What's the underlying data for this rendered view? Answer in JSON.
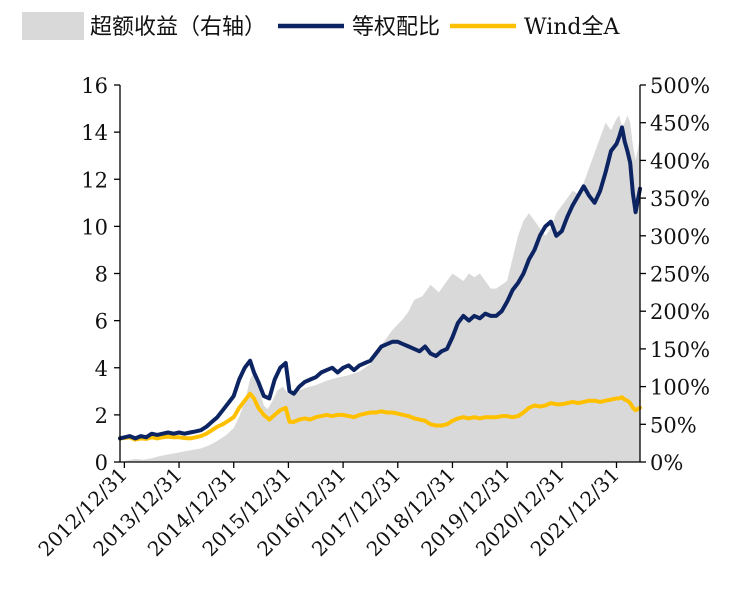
{
  "chart_data": {
    "type": "line",
    "legend": {
      "position": "top",
      "entries": [
        {
          "key": "excess",
          "label": "超额收益（右轴）",
          "style": "area",
          "color": "#d9d9d9"
        },
        {
          "key": "equal",
          "label": "等权配比",
          "style": "line",
          "color": "#0d2463"
        },
        {
          "key": "wind",
          "label": "Wind全A",
          "style": "line",
          "color": "#ffc000"
        }
      ]
    },
    "y_left": {
      "min": 0,
      "max": 16,
      "ticks": [
        "0",
        "2",
        "4",
        "6",
        "8",
        "10",
        "12",
        "14",
        "16"
      ]
    },
    "y_right": {
      "min": 0,
      "max": 500,
      "ticks": [
        "0%",
        "50%",
        "100%",
        "150%",
        "200%",
        "250%",
        "300%",
        "350%",
        "400%",
        "450%",
        "500%"
      ]
    },
    "x_axis": {
      "start": 2012.92,
      "end": 2022.43,
      "ticks": [
        {
          "value": 2013.0,
          "label": "2012/12/31"
        },
        {
          "value": 2014.0,
          "label": "2013/12/31"
        },
        {
          "value": 2015.0,
          "label": "2014/12/31"
        },
        {
          "value": 2016.0,
          "label": "2015/12/31"
        },
        {
          "value": 2017.0,
          "label": "2016/12/31"
        },
        {
          "value": 2018.0,
          "label": "2017/12/31"
        },
        {
          "value": 2019.0,
          "label": "2018/12/31"
        },
        {
          "value": 2020.0,
          "label": "2019/12/31"
        },
        {
          "value": 2021.0,
          "label": "2020/12/31"
        },
        {
          "value": 2022.0,
          "label": "2021/12/31"
        }
      ]
    },
    "series": [
      {
        "name": "超额收益（右轴）",
        "axis": "right",
        "type": "area",
        "color": "#d9d9d9",
        "x": [
          2012.92,
          2013.05,
          2013.2,
          2013.35,
          2013.5,
          2013.65,
          2013.8,
          2013.95,
          2014.1,
          2014.25,
          2014.4,
          2014.55,
          2014.7,
          2014.85,
          2015.0,
          2015.1,
          2015.2,
          2015.3,
          2015.38,
          2015.45,
          2015.55,
          2015.62,
          2015.7,
          2015.8,
          2015.9,
          2016.0,
          2016.1,
          2016.3,
          2016.5,
          2016.7,
          2016.9,
          2017.1,
          2017.3,
          2017.5,
          2017.7,
          2017.9,
          2018.1,
          2018.2,
          2018.3,
          2018.45,
          2018.6,
          2018.75,
          2018.9,
          2019.0,
          2019.1,
          2019.2,
          2019.3,
          2019.4,
          2019.5,
          2019.6,
          2019.7,
          2019.8,
          2019.9,
          2020.0,
          2020.1,
          2020.2,
          2020.3,
          2020.4,
          2020.5,
          2020.6,
          2020.7,
          2020.8,
          2020.9,
          2021.0,
          2021.1,
          2021.2,
          2021.3,
          2021.4,
          2021.5,
          2021.6,
          2021.7,
          2021.8,
          2021.9,
          2022.0,
          2022.05,
          2022.1,
          2022.15,
          2022.2,
          2022.25,
          2022.3,
          2022.35,
          2022.43
        ],
        "values": [
          0,
          2,
          4,
          3,
          5,
          8,
          10,
          12,
          14,
          16,
          18,
          22,
          28,
          35,
          45,
          60,
          80,
          110,
          120,
          100,
          75,
          70,
          80,
          95,
          100,
          90,
          92,
          98,
          102,
          108,
          112,
          115,
          120,
          130,
          155,
          175,
          190,
          200,
          215,
          220,
          235,
          225,
          240,
          250,
          245,
          240,
          250,
          245,
          250,
          240,
          230,
          230,
          235,
          240,
          270,
          300,
          320,
          330,
          320,
          310,
          300,
          310,
          330,
          340,
          350,
          360,
          355,
          370,
          390,
          410,
          430,
          450,
          440,
          455,
          460,
          445,
          450,
          460,
          450,
          420,
          400,
          430
        ]
      },
      {
        "name": "等权配比",
        "axis": "left",
        "type": "line",
        "color": "#0d2463",
        "x": [
          2012.92,
          2013.0,
          2013.1,
          2013.2,
          2013.3,
          2013.4,
          2013.5,
          2013.6,
          2013.7,
          2013.8,
          2013.9,
          2014.0,
          2014.1,
          2014.2,
          2014.3,
          2014.4,
          2014.5,
          2014.6,
          2014.7,
          2014.8,
          2014.9,
          2015.0,
          2015.1,
          2015.2,
          2015.3,
          2015.37,
          2015.45,
          2015.55,
          2015.65,
          2015.75,
          2015.85,
          2015.95,
          2016.02,
          2016.1,
          2016.2,
          2016.3,
          2016.4,
          2016.5,
          2016.6,
          2016.7,
          2016.8,
          2016.9,
          2017.0,
          2017.1,
          2017.2,
          2017.3,
          2017.4,
          2017.5,
          2017.6,
          2017.7,
          2017.8,
          2017.9,
          2018.0,
          2018.1,
          2018.2,
          2018.3,
          2018.4,
          2018.5,
          2018.6,
          2018.7,
          2018.8,
          2018.9,
          2019.0,
          2019.1,
          2019.2,
          2019.3,
          2019.4,
          2019.5,
          2019.6,
          2019.7,
          2019.8,
          2019.9,
          2020.0,
          2020.1,
          2020.2,
          2020.3,
          2020.4,
          2020.5,
          2020.6,
          2020.7,
          2020.8,
          2020.9,
          2021.0,
          2021.1,
          2021.2,
          2021.3,
          2021.4,
          2021.5,
          2021.6,
          2021.7,
          2021.8,
          2021.9,
          2022.0,
          2022.05,
          2022.1,
          2022.15,
          2022.2,
          2022.25,
          2022.3,
          2022.35,
          2022.43
        ],
        "values": [
          1.0,
          1.05,
          1.1,
          1.0,
          1.1,
          1.05,
          1.2,
          1.15,
          1.2,
          1.25,
          1.2,
          1.25,
          1.2,
          1.25,
          1.3,
          1.35,
          1.5,
          1.7,
          1.9,
          2.2,
          2.5,
          2.8,
          3.5,
          4.0,
          4.3,
          3.8,
          3.4,
          2.8,
          2.7,
          3.5,
          4.0,
          4.2,
          3.0,
          2.9,
          3.2,
          3.4,
          3.5,
          3.6,
          3.8,
          3.9,
          4.0,
          3.8,
          4.0,
          4.1,
          3.9,
          4.1,
          4.2,
          4.3,
          4.6,
          4.9,
          5.0,
          5.1,
          5.1,
          5.0,
          4.9,
          4.8,
          4.7,
          4.9,
          4.6,
          4.5,
          4.7,
          4.8,
          5.3,
          5.9,
          6.2,
          6.0,
          6.2,
          6.1,
          6.3,
          6.2,
          6.2,
          6.4,
          6.8,
          7.3,
          7.6,
          8.0,
          8.6,
          9.0,
          9.6,
          10.0,
          10.2,
          9.6,
          9.8,
          10.4,
          10.9,
          11.3,
          11.7,
          11.3,
          11.0,
          11.5,
          12.3,
          13.2,
          13.5,
          13.8,
          14.2,
          13.6,
          13.2,
          12.7,
          11.4,
          10.6,
          11.6
        ]
      },
      {
        "name": "Wind全A",
        "axis": "left",
        "type": "line",
        "color": "#ffc000",
        "x": [
          2012.92,
          2013.0,
          2013.1,
          2013.2,
          2013.3,
          2013.4,
          2013.5,
          2013.6,
          2013.7,
          2013.8,
          2013.9,
          2014.0,
          2014.1,
          2014.2,
          2014.3,
          2014.4,
          2014.5,
          2014.6,
          2014.7,
          2014.8,
          2014.9,
          2015.0,
          2015.1,
          2015.2,
          2015.3,
          2015.37,
          2015.45,
          2015.55,
          2015.65,
          2015.75,
          2015.85,
          2015.95,
          2016.02,
          2016.1,
          2016.2,
          2016.3,
          2016.4,
          2016.5,
          2016.6,
          2016.7,
          2016.8,
          2016.9,
          2017.0,
          2017.1,
          2017.2,
          2017.3,
          2017.4,
          2017.5,
          2017.6,
          2017.7,
          2017.8,
          2017.9,
          2018.0,
          2018.1,
          2018.2,
          2018.3,
          2018.4,
          2018.5,
          2018.6,
          2018.7,
          2018.8,
          2018.9,
          2019.0,
          2019.1,
          2019.2,
          2019.3,
          2019.4,
          2019.5,
          2019.6,
          2019.7,
          2019.8,
          2019.9,
          2020.0,
          2020.1,
          2020.2,
          2020.3,
          2020.4,
          2020.5,
          2020.6,
          2020.7,
          2020.8,
          2020.9,
          2021.0,
          2021.1,
          2021.2,
          2021.3,
          2021.4,
          2021.5,
          2021.6,
          2021.7,
          2021.8,
          2021.9,
          2022.0,
          2022.05,
          2022.1,
          2022.15,
          2022.2,
          2022.25,
          2022.3,
          2022.35,
          2022.43
        ],
        "values": [
          1.0,
          1.02,
          1.05,
          0.95,
          1.0,
          0.98,
          1.05,
          1.0,
          1.05,
          1.08,
          1.05,
          1.05,
          1.02,
          1.0,
          1.05,
          1.1,
          1.2,
          1.35,
          1.5,
          1.6,
          1.75,
          1.9,
          2.3,
          2.6,
          2.9,
          2.7,
          2.3,
          2.0,
          1.8,
          2.0,
          2.2,
          2.3,
          1.7,
          1.7,
          1.8,
          1.85,
          1.8,
          1.9,
          1.95,
          2.0,
          1.95,
          2.0,
          2.0,
          1.95,
          1.9,
          2.0,
          2.05,
          2.1,
          2.1,
          2.15,
          2.1,
          2.1,
          2.05,
          2.0,
          1.95,
          1.85,
          1.8,
          1.75,
          1.6,
          1.55,
          1.55,
          1.6,
          1.75,
          1.85,
          1.9,
          1.85,
          1.9,
          1.85,
          1.9,
          1.9,
          1.9,
          1.95,
          1.95,
          1.9,
          1.95,
          2.1,
          2.3,
          2.4,
          2.35,
          2.4,
          2.5,
          2.45,
          2.45,
          2.5,
          2.55,
          2.5,
          2.55,
          2.6,
          2.6,
          2.55,
          2.6,
          2.65,
          2.7,
          2.7,
          2.75,
          2.65,
          2.6,
          2.5,
          2.3,
          2.2,
          2.3
        ]
      }
    ]
  }
}
